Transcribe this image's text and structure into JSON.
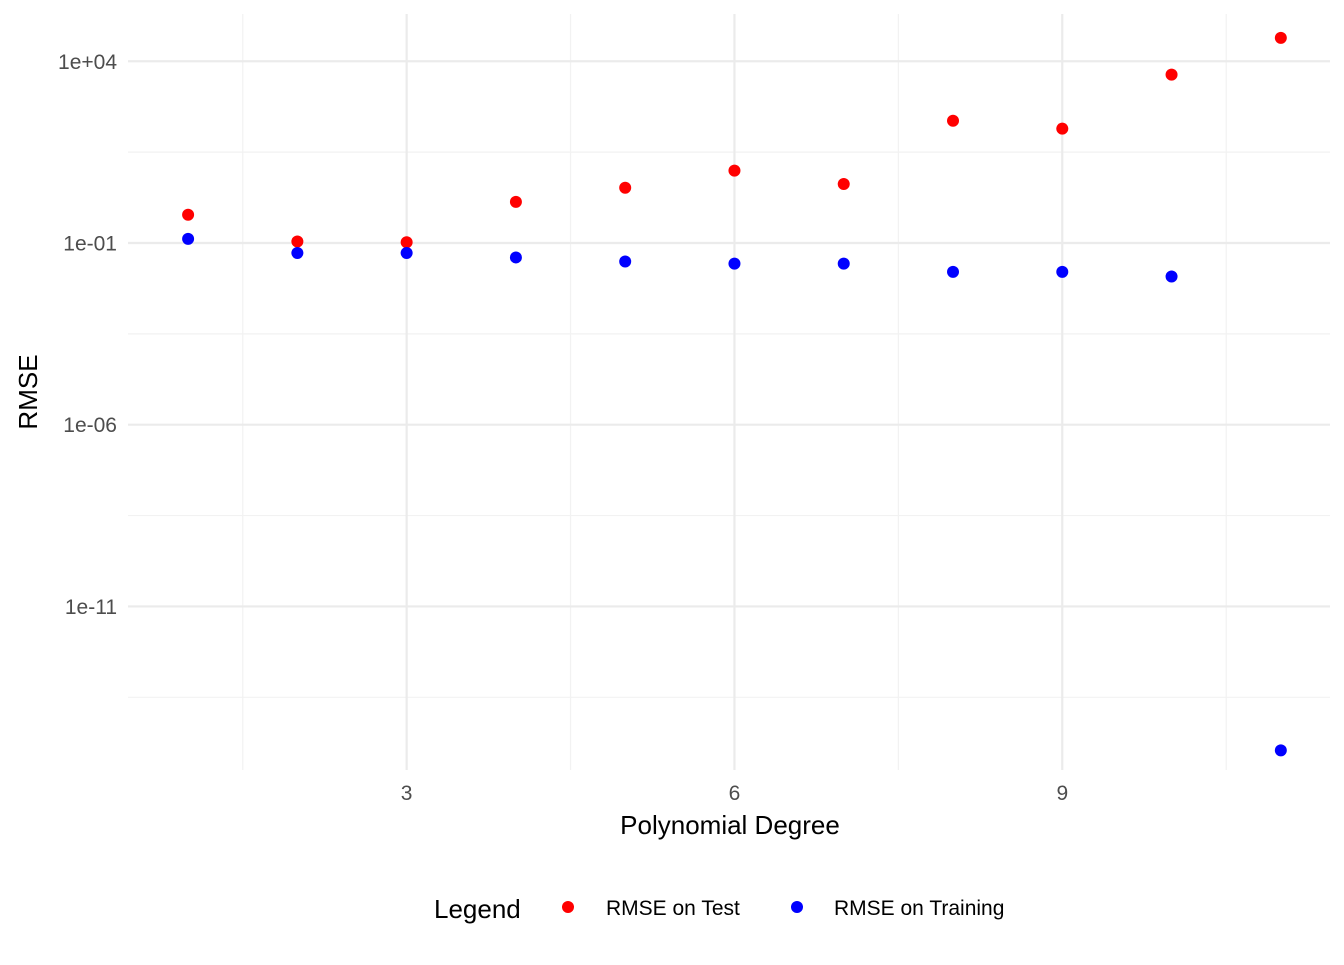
{
  "chart_data": {
    "type": "scatter",
    "title": "",
    "xlabel": "Polynomial Degree",
    "ylabel": "RMSE",
    "xlim": [
      0.45,
      11.45
    ],
    "ylim_log10": [
      -15.5,
      5.3
    ],
    "y_scale": "log10",
    "grid": true,
    "x_ticks": [
      {
        "value": 3,
        "label": "3"
      },
      {
        "value": 6,
        "label": "6"
      },
      {
        "value": 9,
        "label": "9"
      }
    ],
    "x_minor_ticks": [
      1.5,
      4.5,
      7.5,
      10.5
    ],
    "y_ticks": [
      {
        "log10": 4,
        "label": "1e+04"
      },
      {
        "log10": -1,
        "label": "1e-01"
      },
      {
        "log10": -6,
        "label": "1e-06"
      },
      {
        "log10": -11,
        "label": "1e-11"
      }
    ],
    "y_minor_ticks_log10": [
      1.5,
      -3.5,
      -8.5,
      -13.5
    ],
    "series": [
      {
        "name": "RMSE on Test",
        "color": "#ff0000",
        "x": [
          1,
          2,
          3,
          4,
          5,
          6,
          7,
          8,
          9,
          10,
          11
        ],
        "y": [
          0.6,
          0.11,
          0.105,
          1.35,
          3.3,
          9.8,
          4.2,
          230,
          140,
          4300,
          44000
        ]
      },
      {
        "name": "RMSE on Training",
        "color": "#0000ff",
        "x": [
          1,
          2,
          3,
          4,
          5,
          6,
          7,
          8,
          9,
          10,
          11
        ],
        "y": [
          0.13,
          0.053,
          0.053,
          0.04,
          0.031,
          0.027,
          0.027,
          0.016,
          0.016,
          0.012,
          1.1e-15
        ]
      }
    ],
    "legend": {
      "title": "Legend",
      "position": "bottom",
      "entries": [
        {
          "label": "RMSE on Test",
          "color": "#ff0000"
        },
        {
          "label": "RMSE on Training",
          "color": "#0000ff"
        }
      ]
    }
  }
}
